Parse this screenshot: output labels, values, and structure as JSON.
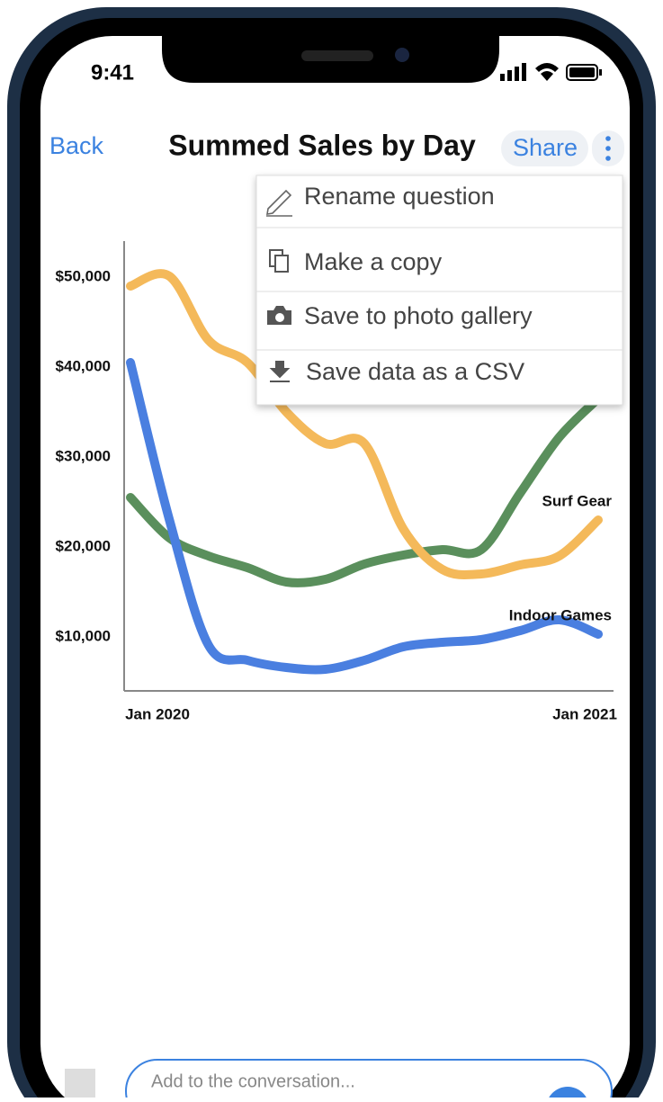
{
  "status_bar": {
    "time": "9:41"
  },
  "nav": {
    "back": "Back",
    "title": "Summed Sales by Day",
    "share": "Share"
  },
  "menu": {
    "items": [
      "Rename question",
      "Make a copy",
      "Save to photo gallery",
      "Save data as a CSV"
    ]
  },
  "chart_data": {
    "type": "line",
    "categories": [
      "Jan 2020",
      null,
      null,
      null,
      null,
      null,
      null,
      null,
      null,
      null,
      null,
      null,
      "Jan 2021"
    ],
    "series": [
      {
        "name": "Surf Gear",
        "color": "#f4b95a",
        "values": [
          49000,
          50100,
          43000,
          40500,
          35000,
          31500,
          31500,
          22000,
          17500,
          17000,
          18000,
          19000,
          23000
        ]
      },
      {
        "name": "Indoor Games",
        "color": "#4a7fe0",
        "values": [
          40500,
          23000,
          9100,
          7400,
          6600,
          6400,
          7400,
          8900,
          9400,
          9700,
          10700,
          11900,
          10300
        ]
      },
      {
        "color": "#5a8f5c",
        "values": [
          25500,
          21000,
          19000,
          17700,
          16100,
          16400,
          18100,
          19100,
          19700,
          19700,
          26000,
          32200,
          36500
        ]
      }
    ],
    "ylim": [
      4000,
      54000
    ],
    "yticks": [
      {
        "value": 10000,
        "label": "$10,000"
      },
      {
        "value": 20000,
        "label": "$20,000"
      },
      {
        "value": 30000,
        "label": "$30,000"
      },
      {
        "value": 40000,
        "label": "$40,000"
      },
      {
        "value": 50000,
        "label": "$50,000"
      }
    ],
    "grid": false
  },
  "composer": {
    "placeholder": "Add to the conversation..."
  }
}
